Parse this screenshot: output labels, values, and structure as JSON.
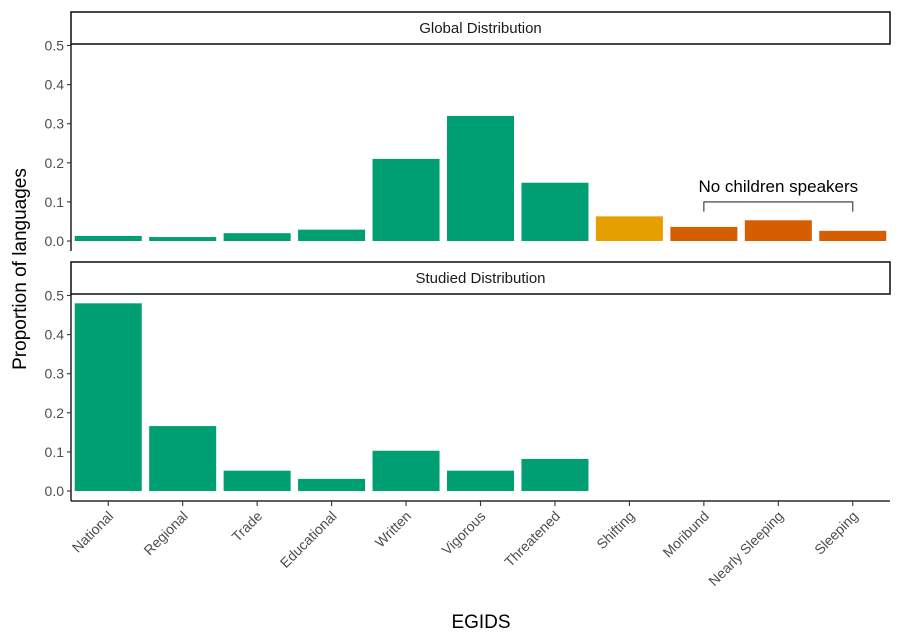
{
  "chart_data": {
    "type": "bar",
    "xlabel": "EGIDS",
    "ylabel": "Proportion of languages",
    "categories": [
      "National",
      "Regional",
      "Trade",
      "Educational",
      "Written",
      "Vigorous",
      "Threatened",
      "Shifting",
      "Moribund",
      "Nearly Sleeping",
      "Sleeping"
    ],
    "ylim": [
      0,
      0.5
    ],
    "yticks": [
      "0.0",
      "0.1",
      "0.2",
      "0.3",
      "0.4",
      "0.5"
    ],
    "grid": false,
    "colors": {
      "green": "#009E73",
      "yellow": "#E69F00",
      "orange": "#D55E00"
    },
    "facets": [
      {
        "label": "Global Distribution",
        "values": [
          0.013,
          0.01,
          0.02,
          0.029,
          0.21,
          0.32,
          0.149,
          0.063,
          0.036,
          0.053,
          0.026
        ],
        "bar_colors": [
          "green",
          "green",
          "green",
          "green",
          "green",
          "green",
          "green",
          "yellow",
          "orange",
          "orange",
          "orange"
        ],
        "annotation": {
          "text": "No children speakers",
          "from_category": "Moribund",
          "to_category": "Sleeping"
        }
      },
      {
        "label": "Studied Distribution",
        "values": [
          0.48,
          0.166,
          0.052,
          0.031,
          0.103,
          0.052,
          0.082,
          0,
          0,
          0,
          0
        ],
        "bar_colors": [
          "green",
          "green",
          "green",
          "green",
          "green",
          "green",
          "green",
          "yellow",
          "orange",
          "orange",
          "orange"
        ]
      }
    ]
  }
}
